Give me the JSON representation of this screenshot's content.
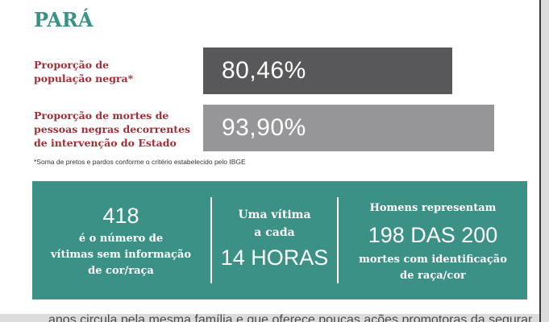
{
  "title": "PARÁ",
  "rows": [
    {
      "label_lines": [
        "Proporção de",
        "população negra*"
      ],
      "value": 80.46,
      "display": "80,46%",
      "color": "#58585a"
    },
    {
      "label_lines": [
        "Proporção de mortes de",
        "pessoas negras decorrentes",
        "de intervenção do Estado"
      ],
      "value": 93.9,
      "display": "93,90%",
      "color": "#969698"
    }
  ],
  "footnote": "*Soma de pretos e pardos conforme o critério estabelecido pelo IBGE",
  "stats": {
    "col1": {
      "number": "418",
      "text_lines": [
        "é o número de",
        "vítimas sem informação",
        "de cor/raça"
      ]
    },
    "col2": {
      "text_lines": [
        "Uma vítima",
        "a cada"
      ],
      "number": "14 HORAS"
    },
    "col3": {
      "heading": "Homens representam",
      "number": "198 DAS 200",
      "text_lines": [
        "mortes com identificação",
        "de raça/cor"
      ]
    }
  },
  "colors": {
    "accent": "#3b9185",
    "label": "#a22f35",
    "bar_dark": "#58585a",
    "bar_light": "#969698"
  },
  "chart_data": {
    "type": "bar",
    "orientation": "horizontal",
    "title": "PARÁ",
    "categories": [
      "Proporção de população negra*",
      "Proporção de mortes de pessoas negras decorrentes de intervenção do Estado"
    ],
    "values": [
      80.46,
      93.9
    ],
    "value_labels": [
      "80,46%",
      "93,90%"
    ],
    "unit": "%",
    "xlim": [
      0,
      100
    ],
    "grid": false
  },
  "bottom_text": "anos circula pela mesma família e que oferece poucas ações promotoras da seguranç"
}
